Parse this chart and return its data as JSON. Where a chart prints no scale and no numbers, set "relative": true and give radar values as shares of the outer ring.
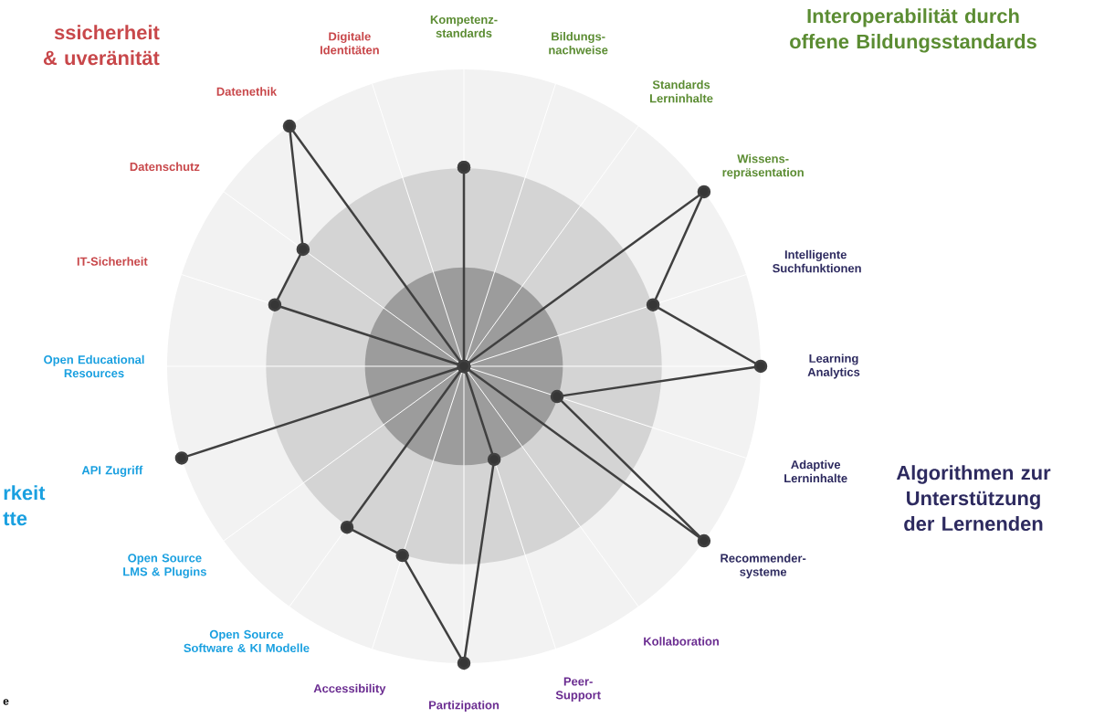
{
  "chart_data": {
    "type": "radar",
    "relative": true,
    "grid": true,
    "marker": "circle",
    "categories": [
      "Kompetenz- standards",
      "Bildungs- nachweise",
      "Standards Lerninhalte",
      "Wissens- repräsentation",
      "Intelligente Suchfunktionen",
      "Learning Analytics",
      "Adaptive Lerninhalte",
      "Recommender- systeme",
      "Kollaboration",
      "Peer- Support",
      "Partizipation",
      "Accessibility",
      "Open Source Software & KI Modelle",
      "Open Source LMS & Plugins",
      "API Zugriff",
      "Open Educational Resources",
      "IT-Sicherheit",
      "Datenschutz",
      "Datenethik",
      "Digitale Identitäten"
    ],
    "series": [
      {
        "color": "#404040",
        "values": [
          0.67,
          0,
          0,
          1,
          0.67,
          1,
          0.33,
          1,
          0,
          0.33,
          1,
          0.67,
          0.67,
          0,
          1,
          0,
          0.67,
          0.67,
          1,
          0
        ]
      }
    ],
    "annotations": [
      "ssicherheit & uveränität",
      "Interoperabilität durch offene Bildungsstandards",
      "Algorithmen zur Unterstützung der Lernenden",
      "rkeit tte",
      "e"
    ]
  }
}
